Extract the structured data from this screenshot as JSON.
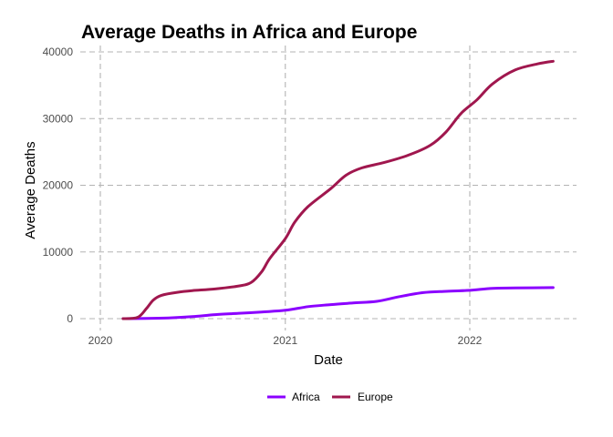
{
  "chart_data": {
    "type": "line",
    "title": "Average Deaths in Africa and Europe",
    "xlabel": "Date",
    "ylabel": "Average Deaths",
    "xlim": [
      "2020-01-01",
      "2022-07-01"
    ],
    "ylim": [
      0,
      40000
    ],
    "x_ticks": [
      {
        "value": "2020-01-01",
        "label": "2020"
      },
      {
        "value": "2021-01-01",
        "label": "2021"
      },
      {
        "value": "2022-01-01",
        "label": "2022"
      }
    ],
    "y_ticks": [
      {
        "value": 0,
        "label": "0"
      },
      {
        "value": 10000,
        "label": "10000"
      },
      {
        "value": 20000,
        "label": "20000"
      },
      {
        "value": 30000,
        "label": "30000"
      },
      {
        "value": 40000,
        "label": "40000"
      }
    ],
    "grid": true,
    "legend_position": "bottom",
    "series": [
      {
        "name": "Africa",
        "color": "#8B00FF",
        "points": [
          [
            "2020-02-15",
            0
          ],
          [
            "2020-04-01",
            30
          ],
          [
            "2020-05-15",
            100
          ],
          [
            "2020-07-01",
            300
          ],
          [
            "2020-08-15",
            600
          ],
          [
            "2020-10-01",
            800
          ],
          [
            "2020-11-15",
            1000
          ],
          [
            "2021-01-01",
            1250
          ],
          [
            "2021-02-15",
            1800
          ],
          [
            "2021-04-01",
            2100
          ],
          [
            "2021-05-15",
            2350
          ],
          [
            "2021-07-01",
            2600
          ],
          [
            "2021-08-15",
            3300
          ],
          [
            "2021-10-01",
            3900
          ],
          [
            "2021-11-15",
            4100
          ],
          [
            "2022-01-01",
            4250
          ],
          [
            "2022-02-15",
            4550
          ],
          [
            "2022-04-01",
            4600
          ],
          [
            "2022-06-15",
            4650
          ]
        ]
      },
      {
        "name": "Europe",
        "color": "#A0174E",
        "points": [
          [
            "2020-02-15",
            0
          ],
          [
            "2020-03-15",
            200
          ],
          [
            "2020-04-01",
            1500
          ],
          [
            "2020-04-15",
            2800
          ],
          [
            "2020-05-01",
            3500
          ],
          [
            "2020-06-01",
            3950
          ],
          [
            "2020-07-01",
            4200
          ],
          [
            "2020-08-15",
            4450
          ],
          [
            "2020-10-01",
            4900
          ],
          [
            "2020-10-25",
            5400
          ],
          [
            "2020-11-15",
            7000
          ],
          [
            "2020-12-01",
            9000
          ],
          [
            "2021-01-01",
            12000
          ],
          [
            "2021-01-20",
            14500
          ],
          [
            "2021-02-15",
            16800
          ],
          [
            "2021-04-01",
            19500
          ],
          [
            "2021-05-01",
            21500
          ],
          [
            "2021-06-01",
            22600
          ],
          [
            "2021-07-15",
            23400
          ],
          [
            "2021-09-01",
            24500
          ],
          [
            "2021-10-15",
            26000
          ],
          [
            "2021-11-15",
            28000
          ],
          [
            "2021-12-15",
            30800
          ],
          [
            "2022-01-15",
            32800
          ],
          [
            "2022-02-15",
            35200
          ],
          [
            "2022-04-01",
            37300
          ],
          [
            "2022-05-15",
            38200
          ],
          [
            "2022-06-15",
            38600
          ]
        ]
      }
    ]
  }
}
